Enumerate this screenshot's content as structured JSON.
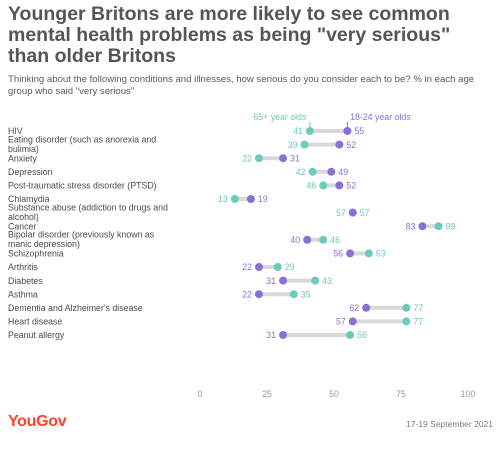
{
  "header": {
    "title": "Younger Britons are more likely to see common mental health problems as being \"very serious\" than older Britons",
    "subtitle": "Thinking about the following conditions and illnesses, how serious do you consider each to be? % in each age group who said \"very serious\""
  },
  "footer": {
    "brand": "YouGov",
    "date": "17-19 September 2021"
  },
  "colors": {
    "young": "#8b6fd6",
    "old": "#6ccbbb",
    "connector": "#d9d9d9",
    "axis_text": "#9a9a9a"
  },
  "chart_data": {
    "type": "dumbbell",
    "xlim": [
      0,
      100
    ],
    "xticks": [
      0,
      25,
      50,
      75,
      100
    ],
    "grid": false,
    "legend_placement": "top",
    "series": [
      {
        "name": "65+ year olds",
        "color": "#6ccbbb",
        "values": [
          41,
          39,
          22,
          42,
          46,
          13,
          57,
          89,
          46,
          63,
          29,
          43,
          35,
          77,
          77,
          56
        ]
      },
      {
        "name": "18-24 year olds",
        "color": "#8b6fd6",
        "values": [
          55,
          52,
          31,
          49,
          52,
          19,
          57,
          83,
          40,
          56,
          22,
          31,
          22,
          62,
          57,
          31
        ]
      }
    ],
    "categories": [
      [
        "HIV"
      ],
      [
        "Eating disorder (such as anorexia and",
        "bulimia)"
      ],
      [
        "Anxiety"
      ],
      [
        "Depression"
      ],
      [
        "Post-traumatic stress disorder (PTSD)"
      ],
      [
        "Chlamydia"
      ],
      [
        "Substance abuse (addiction to drugs and",
        "alcohol)"
      ],
      [
        "Cancer"
      ],
      [
        "Bipolar disorder (previously known as",
        "manic depression)"
      ],
      [
        "Schizophrenia"
      ],
      [
        "Arthritis"
      ],
      [
        "Diabetes"
      ],
      [
        "Asthma"
      ],
      [
        "Dementia and Alzheimer's disease"
      ],
      [
        "Heart disease"
      ],
      [
        "Peanut allergy"
      ]
    ]
  }
}
